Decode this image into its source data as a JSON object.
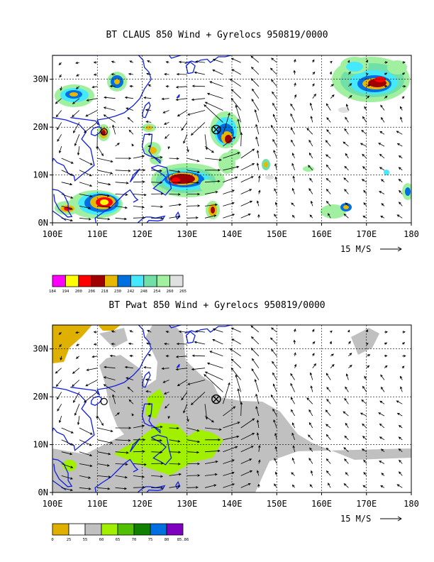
{
  "chart_data": [
    {
      "type": "heatmap",
      "title": "BT CLAUS 850 Wind + Gyrelocs 950819/0000",
      "x_ticks": [
        "100E",
        "110E",
        "120E",
        "130E",
        "140E",
        "150E",
        "160E",
        "170E",
        "180"
      ],
      "y_ticks": [
        "0N",
        "10N",
        "20N",
        "30N"
      ],
      "xlim": [
        100,
        180
      ],
      "ylim": [
        0,
        35
      ],
      "grid": true,
      "vector_reference_label": "15 M/S",
      "colorbar": {
        "labels": [
          "184",
          "194",
          "200",
          "206",
          "218",
          "230",
          "242",
          "248",
          "254",
          "260",
          "265"
        ],
        "colors": [
          "#ff00ff",
          "#ffff00",
          "#ff0000",
          "#a00000",
          "#e8b800",
          "#0070e0",
          "#44e8ff",
          "#70e0a8",
          "#a0f0a0",
          "#e0e0e0"
        ]
      },
      "gyre_locations": [
        {
          "lon": 111.5,
          "lat": 19.0,
          "symbol": "circle"
        },
        {
          "lon": 136.5,
          "lat": 19.5,
          "symbol": "circle-x"
        }
      ]
    },
    {
      "type": "heatmap",
      "title": "BT Pwat 850 Wind + Gyrelocs 950819/0000",
      "x_ticks": [
        "100E",
        "110E",
        "120E",
        "130E",
        "140E",
        "150E",
        "160E",
        "170E",
        "180"
      ],
      "y_ticks": [
        "0N",
        "10N",
        "20N",
        "30N"
      ],
      "xlim": [
        100,
        180
      ],
      "ylim": [
        0,
        35
      ],
      "grid": true,
      "vector_reference_label": "15 M/S",
      "colorbar": {
        "labels": [
          "0",
          "25",
          "55",
          "60",
          "65",
          "70",
          "75",
          "80",
          "85.86"
        ],
        "colors": [
          "#e0b000",
          "#ffffff",
          "#c0c0c0",
          "#a0f000",
          "#50c000",
          "#108000",
          "#0070e0",
          "#8000c0"
        ]
      },
      "gyre_locations": [
        {
          "lon": 111.5,
          "lat": 19.0,
          "symbol": "circle"
        },
        {
          "lon": 136.5,
          "lat": 19.5,
          "symbol": "circle-x"
        }
      ]
    }
  ]
}
